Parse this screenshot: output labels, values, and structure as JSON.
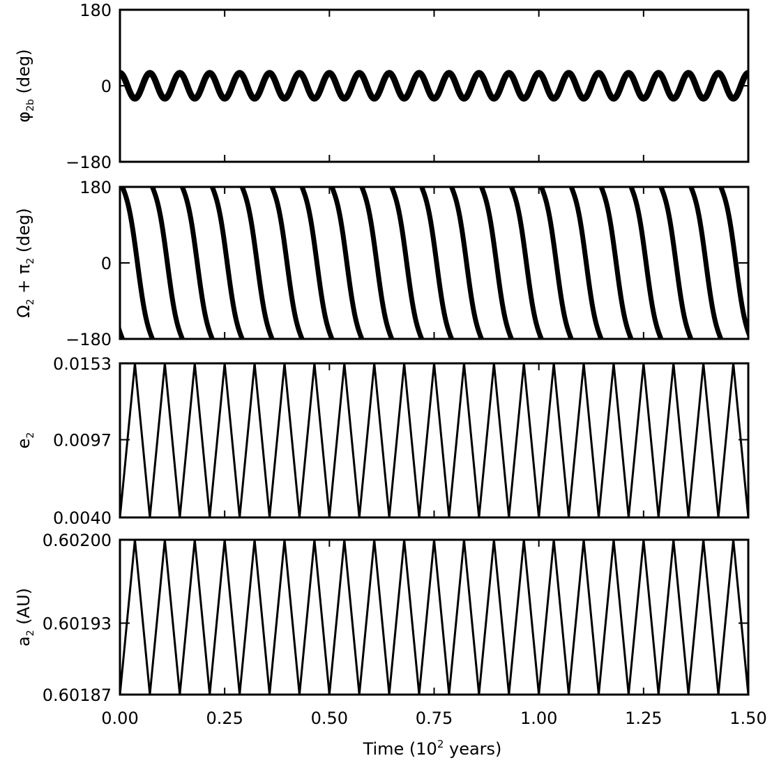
{
  "chart_data": [
    {
      "type": "line",
      "panel": "phi",
      "ylabel": "φ₂b (deg)",
      "ylabel_parts": {
        "symbol": "φ",
        "sub": "2b",
        "unit": "(deg)"
      },
      "ylim": [
        -180,
        180
      ],
      "yticks": [
        "180",
        "0",
        "−180"
      ],
      "ytick_values": [
        180,
        0,
        -180
      ],
      "xlim": [
        0,
        1.5
      ],
      "series": [
        {
          "description": "oscillation",
          "amplitude": 30,
          "offset": 0,
          "cycles": 21,
          "phase_deg": 90,
          "shape": "sine"
        }
      ]
    },
    {
      "type": "line",
      "panel": "omega_pi",
      "ylabel": "Ω₂ + π₂ (deg)",
      "ylabel_parts": {
        "a": "Ω",
        "a_sub": "2",
        "plus": "+",
        "b": "π",
        "b_sub": "2",
        "unit": "(deg)"
      },
      "ylim": [
        -180,
        180
      ],
      "yticks": [
        "180",
        "0",
        "−180"
      ],
      "ytick_values": [
        180,
        0,
        -180
      ],
      "xlim": [
        0,
        1.5
      ],
      "series": [
        {
          "description": "circulating angle decreasing through full 360° range",
          "cycles": 21,
          "shape": "wrapped-descending"
        }
      ]
    },
    {
      "type": "line",
      "panel": "e2",
      "ylabel": "e₂",
      "ylabel_parts": {
        "symbol": "e",
        "sub": "2"
      },
      "ylim": [
        0.004,
        0.0153
      ],
      "yticks": [
        "0.0153",
        "0.0097",
        "0.0040"
      ],
      "ytick_values": [
        0.0153,
        0.0097,
        0.004
      ],
      "xlim": [
        0,
        1.5
      ],
      "series": [
        {
          "description": "eccentricity oscillation",
          "min": 0.004,
          "max": 0.0153,
          "cycles": 21,
          "shape": "triangle"
        }
      ]
    },
    {
      "type": "line",
      "panel": "a2",
      "ylabel": "a₂ (AU)",
      "ylabel_parts": {
        "symbol": "a",
        "sub": "2",
        "unit": "(AU)"
      },
      "ylim": [
        0.60187,
        0.602
      ],
      "yticks": [
        "0.60200",
        "0.60193",
        "0.60187"
      ],
      "ytick_values": [
        0.602,
        0.60193,
        0.60187
      ],
      "xlim": [
        0,
        1.5
      ],
      "series": [
        {
          "description": "semi-major axis oscillation",
          "min": 0.60187,
          "max": 0.602,
          "cycles": 21,
          "shape": "triangle"
        }
      ]
    }
  ],
  "xaxis": {
    "xlabel": "Time (10² years)",
    "xlabel_parts": {
      "pre": "Time (10",
      "sup": "2",
      "post": " years)"
    },
    "xticks": [
      "0.00",
      "0.25",
      "0.50",
      "0.75",
      "1.00",
      "1.25",
      "1.50"
    ],
    "xtick_values": [
      0,
      0.25,
      0.5,
      0.75,
      1.0,
      1.25,
      1.5
    ]
  }
}
